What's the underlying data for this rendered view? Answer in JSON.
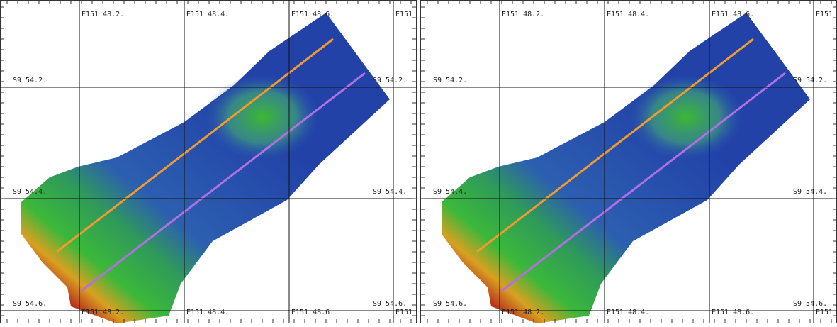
{
  "panels": [
    {
      "top_labels": [
        "E151 48.2.",
        "E151 48.4.",
        "E151 48.6.",
        "E151"
      ],
      "bottom_labels": [
        "E151 48.2.",
        "E151 48.4.",
        "E151 48.6.",
        "E151"
      ],
      "left_labels": [
        "S9 54.2.",
        "S9 54.4.",
        "S9 54.6."
      ],
      "right_labels": [
        "S9 54.2.",
        "S9 54.4.",
        "S9 54.6."
      ]
    },
    {
      "top_labels": [
        "E151 48.2.",
        "E151 48.4.",
        "E151 48.6.",
        "E151"
      ],
      "bottom_labels": [
        "E151 48.2.",
        "E151 48.4.",
        "E151 48.6.",
        "E151"
      ],
      "left_labels": [
        "S9 54.2.",
        "S9 54.4.",
        "S9 54.6."
      ],
      "right_labels": [
        "S9 54.2.",
        "S9 54.4.",
        "S9 54.6."
      ]
    }
  ]
}
